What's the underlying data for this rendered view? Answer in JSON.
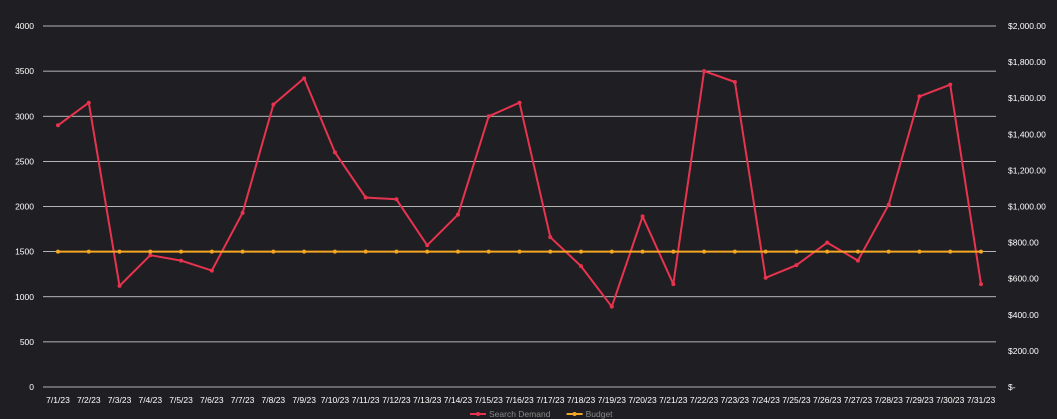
{
  "chart_data": {
    "type": "line",
    "title": "",
    "xlabel": "",
    "ylabel": "",
    "categories": [
      "7/1/23",
      "7/2/23",
      "7/3/23",
      "7/4/23",
      "7/5/23",
      "7/6/23",
      "7/7/23",
      "7/8/23",
      "7/9/23",
      "7/10/23",
      "7/11/23",
      "7/12/23",
      "7/13/23",
      "7/14/23",
      "7/15/23",
      "7/16/23",
      "7/17/23",
      "7/18/23",
      "7/19/23",
      "7/20/23",
      "7/21/23",
      "7/22/23",
      "7/23/23",
      "7/24/23",
      "7/25/23",
      "7/26/23",
      "7/27/23",
      "7/28/23",
      "7/29/23",
      "7/30/23",
      "7/31/23"
    ],
    "ylim": [
      0,
      4000
    ],
    "y_ticks": [
      0,
      500,
      1000,
      1500,
      2000,
      2500,
      3000,
      3500,
      4000
    ],
    "y2lim": [
      0,
      2000
    ],
    "y2_ticks": [
      0,
      200,
      400,
      600,
      800,
      1000,
      1200,
      1400,
      1600,
      1800,
      2000
    ],
    "y2_tick_labels": [
      "$-",
      "$200.00",
      "$400.00",
      "$600.00",
      "$800.00",
      "$1,000.00",
      "$1,200.00",
      "$1,400.00",
      "$1,600.00",
      "$1,800.00",
      "$2,000.00"
    ],
    "grid": true,
    "legend_position": "bottom",
    "series": [
      {
        "name": "Search Demand",
        "axis": "left",
        "color": "#e8334f",
        "values": [
          2900,
          3150,
          1120,
          1460,
          1400,
          1290,
          1930,
          3130,
          3420,
          2600,
          2100,
          2080,
          1570,
          1910,
          3000,
          3150,
          1660,
          1340,
          890,
          1890,
          1140,
          3500,
          3380,
          1210,
          1350,
          1600,
          1400,
          2020,
          3220,
          3350,
          1140
        ]
      },
      {
        "name": "Budget",
        "axis": "right",
        "color": "#f5a623",
        "values": [
          750,
          750,
          750,
          750,
          750,
          750,
          750,
          750,
          750,
          750,
          750,
          750,
          750,
          750,
          750,
          750,
          750,
          750,
          750,
          750,
          750,
          750,
          750,
          750,
          750,
          750,
          750,
          750,
          750,
          750,
          750
        ]
      }
    ]
  }
}
